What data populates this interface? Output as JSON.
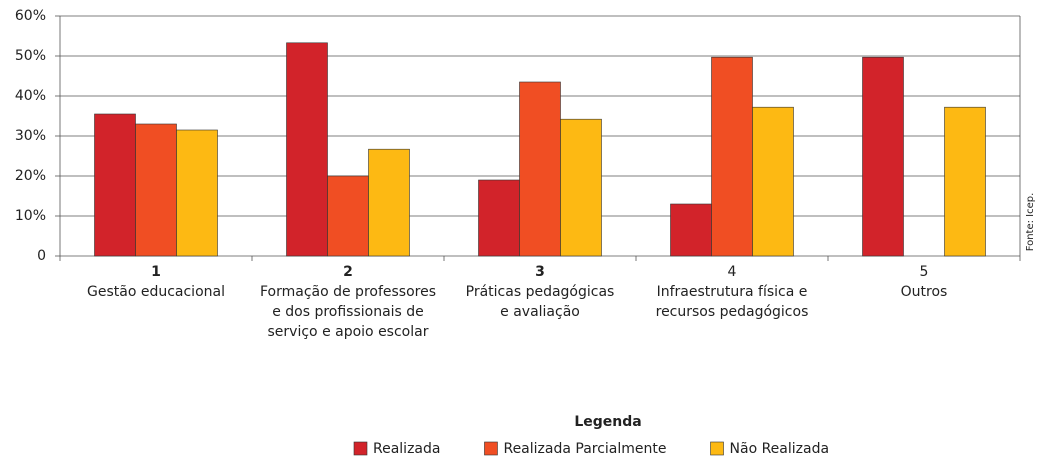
{
  "chart_data": {
    "type": "bar",
    "categories": [
      [
        "1",
        "Gestão educacional"
      ],
      [
        "2",
        "Formação de professores",
        "e dos profissionais de",
        "serviço e apoio escolar"
      ],
      [
        "3",
        "Práticas pedagógicas",
        "e avaliação"
      ],
      [
        "4",
        "Infraestrutura física e",
        "recursos pedagógicos"
      ],
      [
        "5",
        "Outros"
      ]
    ],
    "category_number_bold": [
      true,
      true,
      true,
      false,
      false
    ],
    "series": [
      {
        "name": "Realizada",
        "color": "#d2232a",
        "values": [
          35.5,
          53.3,
          19,
          13,
          49.7
        ]
      },
      {
        "name": "Realizada Parcialmente",
        "color": "#f04e23",
        "values": [
          33,
          20,
          43.5,
          49.7,
          null
        ]
      },
      {
        "name": "Não Realizada",
        "color": "#fdb913",
        "values": [
          31.5,
          26.7,
          34.2,
          37.2,
          37.2
        ]
      }
    ],
    "ylim": [
      0,
      60
    ],
    "yticks": [
      0,
      {
        "value": 10,
        "label": "10%"
      },
      {
        "value": 20,
        "label": "20%"
      },
      {
        "value": 30,
        "label": "30%"
      },
      {
        "value": 40,
        "label": "40%"
      },
      {
        "value": 50,
        "label": "50%"
      },
      {
        "value": 60,
        "label": "60%"
      }
    ],
    "grid": true,
    "legend_title": "Legenda",
    "legend_position": "bottom",
    "source_note": "Fonte: Icep."
  }
}
